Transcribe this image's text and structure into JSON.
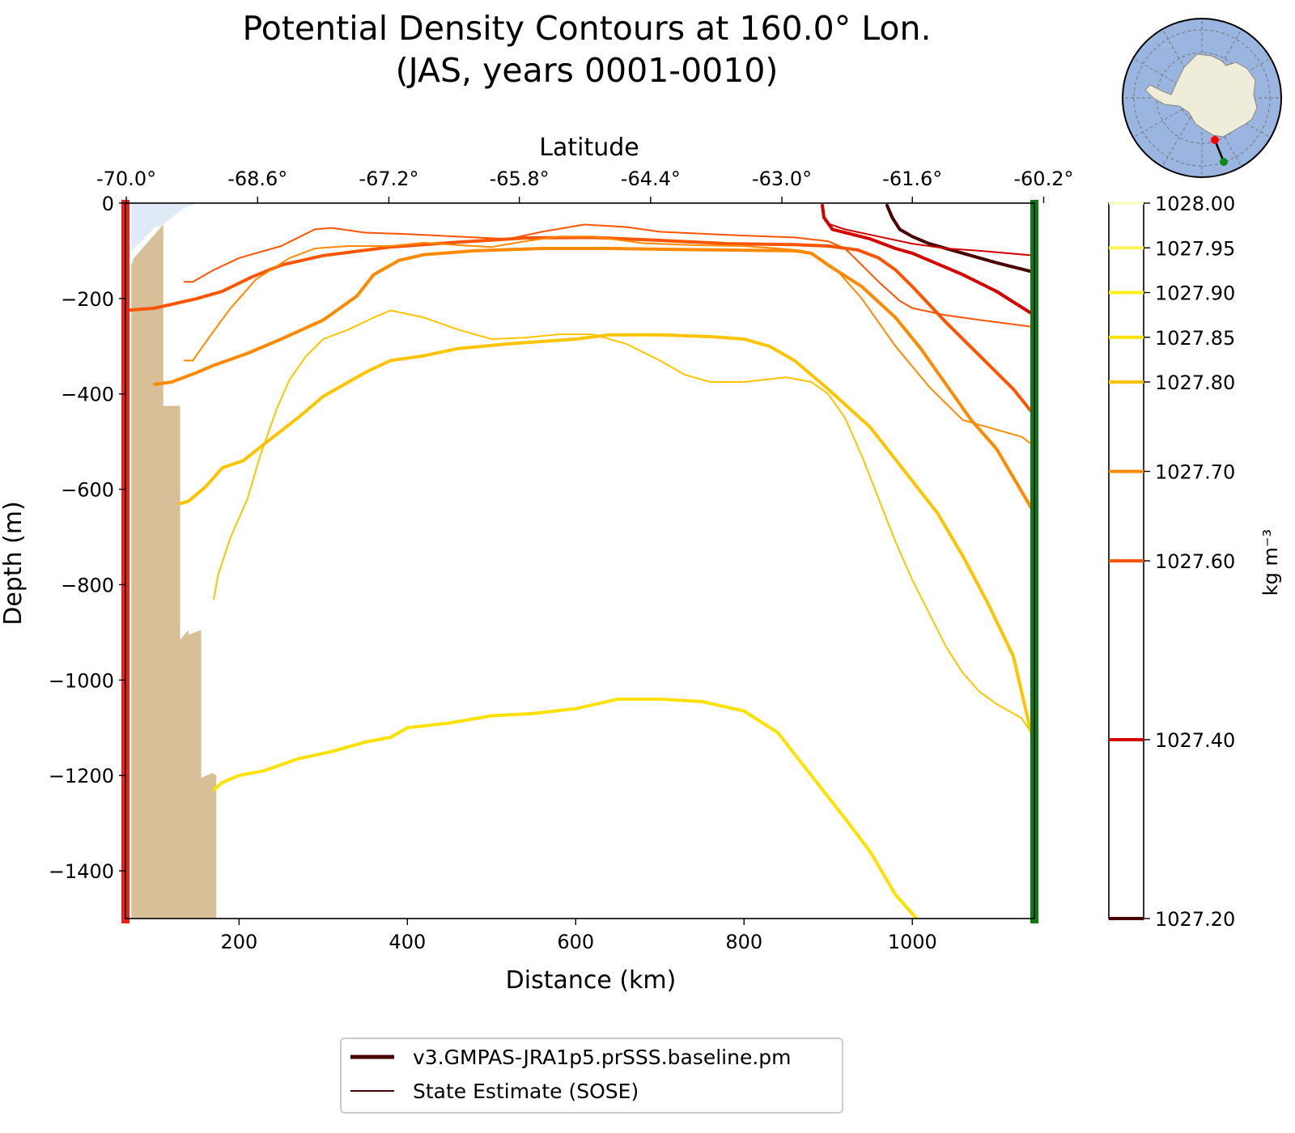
{
  "chart_data": {
    "type": "line",
    "title_line1": "Potential Density Contours at 160.0° Lon.",
    "title_line2": "(JAS, years 0001-0010)",
    "xlabel": "Distance (km)",
    "ylabel": "Depth (m)",
    "top_xlabel": "Latitude",
    "xlim": [
      65,
      1145
    ],
    "ylim": [
      -1500,
      0
    ],
    "x_ticks": [
      200,
      400,
      600,
      800,
      1000
    ],
    "x_tick_labels": [
      "200",
      "400",
      "600",
      "800",
      "1000"
    ],
    "y_ticks": [
      0,
      -200,
      -400,
      -600,
      -800,
      -1000,
      -1200,
      -1400
    ],
    "y_tick_labels": [
      "0",
      "−200",
      "−400",
      "−600",
      "−800",
      "−1000",
      "−1200",
      "−1400"
    ],
    "lat_ticks": [
      {
        "x": 66,
        "label": "-70.0°"
      },
      {
        "x": 222,
        "label": "-68.6°"
      },
      {
        "x": 378,
        "label": "-67.2°"
      },
      {
        "x": 533,
        "label": "-65.8°"
      },
      {
        "x": 689,
        "label": "-64.4°"
      },
      {
        "x": 845,
        "label": "-63.0°"
      },
      {
        "x": 1000,
        "label": "-61.6°"
      },
      {
        "x": 1156,
        "label": "-60.2°"
      }
    ],
    "section_start_color": "#e8231b",
    "section_end_color": "#0e7a12",
    "colorbar": {
      "label": "kg m⁻³",
      "range": [
        1027.2,
        1028.0
      ],
      "levels": [
        {
          "value": 1028.0,
          "label": "1028.00",
          "color": "#fffccc"
        },
        {
          "value": 1027.95,
          "label": "1027.95",
          "color": "#fff45a"
        },
        {
          "value": 1027.9,
          "label": "1027.90",
          "color": "#ffee1a"
        },
        {
          "value": 1027.85,
          "label": "1027.85",
          "color": "#ffe100"
        },
        {
          "value": 1027.8,
          "label": "1027.80",
          "color": "#ffc400"
        },
        {
          "value": 1027.7,
          "label": "1027.70",
          "color": "#ff8a00"
        },
        {
          "value": 1027.6,
          "label": "1027.60",
          "color": "#ff5500"
        },
        {
          "value": 1027.4,
          "label": "1027.40",
          "color": "#d40000"
        },
        {
          "value": 1027.2,
          "label": "1027.20",
          "color": "#4a0000"
        }
      ]
    },
    "legend": [
      {
        "label": "v3.GMPAS-JRA1p5.prSSS.baseline.pm",
        "color": "#4a0000",
        "style": "thick"
      },
      {
        "label": "State Estimate (SOSE)",
        "color": "#4a0000",
        "style": "thin"
      }
    ],
    "bathymetry": {
      "color": "#d7c097",
      "points": [
        [
          72,
          -1500
        ],
        [
          72,
          -130
        ],
        [
          75,
          -115
        ],
        [
          110,
          -45
        ],
        [
          110,
          -425
        ],
        [
          130,
          -425
        ],
        [
          130,
          -915
        ],
        [
          140,
          -895
        ],
        [
          140,
          -905
        ],
        [
          155,
          -895
        ],
        [
          155,
          -1205
        ],
        [
          168,
          -1195
        ],
        [
          173,
          -1200
        ],
        [
          173,
          -1500
        ]
      ]
    },
    "ice_shelf": {
      "color": "#dfeaf6",
      "points": [
        [
          72,
          0
        ],
        [
          150,
          0
        ],
        [
          135,
          -10
        ],
        [
          120,
          -30
        ],
        [
          108,
          -48
        ],
        [
          100,
          -50
        ],
        [
          84,
          -80
        ],
        [
          72,
          -100
        ]
      ]
    },
    "series": [
      {
        "name": "1027.20 model",
        "source": "model",
        "color": "#4a0000",
        "points": [
          [
            970,
            -5
          ],
          [
            976,
            -30
          ],
          [
            985,
            -55
          ],
          [
            1000,
            -70
          ],
          [
            1020,
            -85
          ],
          [
            1060,
            -105
          ],
          [
            1100,
            -125
          ],
          [
            1145,
            -145
          ]
        ]
      },
      {
        "name": "1027.40 model",
        "source": "model",
        "color": "#d40000",
        "points": [
          [
            893,
            -5
          ],
          [
            895,
            -30
          ],
          [
            905,
            -55
          ],
          [
            950,
            -75
          ],
          [
            980,
            -95
          ],
          [
            1000,
            -105
          ],
          [
            1020,
            -120
          ],
          [
            1060,
            -150
          ],
          [
            1100,
            -185
          ],
          [
            1145,
            -235
          ]
        ]
      },
      {
        "name": "1027.40 SOSE",
        "source": "sose",
        "color": "#d40000",
        "points": [
          [
            903,
            -45
          ],
          [
            920,
            -55
          ],
          [
            960,
            -70
          ],
          [
            1000,
            -85
          ],
          [
            1040,
            -95
          ],
          [
            1080,
            -100
          ],
          [
            1145,
            -110
          ]
        ]
      },
      {
        "name": "1027.60 model",
        "source": "model",
        "color": "#ff5500",
        "points": [
          [
            65,
            -225
          ],
          [
            100,
            -220
          ],
          [
            150,
            -200
          ],
          [
            180,
            -185
          ],
          [
            215,
            -155
          ],
          [
            250,
            -130
          ],
          [
            300,
            -110
          ],
          [
            380,
            -92
          ],
          [
            460,
            -82
          ],
          [
            540,
            -73
          ],
          [
            620,
            -72
          ],
          [
            700,
            -78
          ],
          [
            780,
            -85
          ],
          [
            860,
            -87
          ],
          [
            900,
            -90
          ],
          [
            935,
            -98
          ],
          [
            960,
            -115
          ],
          [
            980,
            -140
          ],
          [
            1000,
            -175
          ],
          [
            1040,
            -250
          ],
          [
            1080,
            -320
          ],
          [
            1120,
            -390
          ],
          [
            1145,
            -445
          ]
        ]
      },
      {
        "name": "1027.60 SOSE",
        "source": "sose",
        "color": "#ff5500",
        "points": [
          [
            135,
            -165
          ],
          [
            145,
            -165
          ],
          [
            170,
            -140
          ],
          [
            200,
            -115
          ],
          [
            250,
            -90
          ],
          [
            290,
            -55
          ],
          [
            310,
            -52
          ],
          [
            350,
            -62
          ],
          [
            400,
            -65
          ],
          [
            480,
            -72
          ],
          [
            520,
            -75
          ],
          [
            560,
            -60
          ],
          [
            610,
            -45
          ],
          [
            660,
            -50
          ],
          [
            700,
            -60
          ],
          [
            760,
            -65
          ],
          [
            800,
            -68
          ],
          [
            860,
            -72
          ],
          [
            900,
            -80
          ],
          [
            920,
            -95
          ],
          [
            940,
            -130
          ],
          [
            960,
            -165
          ],
          [
            985,
            -205
          ],
          [
            1000,
            -220
          ],
          [
            1040,
            -235
          ],
          [
            1080,
            -245
          ],
          [
            1145,
            -260
          ]
        ]
      },
      {
        "name": "1027.70 model",
        "source": "model",
        "color": "#ff8a00",
        "points": [
          [
            100,
            -380
          ],
          [
            120,
            -375
          ],
          [
            150,
            -355
          ],
          [
            170,
            -340
          ],
          [
            210,
            -315
          ],
          [
            250,
            -285
          ],
          [
            300,
            -245
          ],
          [
            340,
            -195
          ],
          [
            360,
            -150
          ],
          [
            390,
            -120
          ],
          [
            420,
            -108
          ],
          [
            480,
            -100
          ],
          [
            560,
            -95
          ],
          [
            640,
            -95
          ],
          [
            720,
            -97
          ],
          [
            800,
            -99
          ],
          [
            860,
            -100
          ],
          [
            880,
            -105
          ],
          [
            900,
            -130
          ],
          [
            940,
            -175
          ],
          [
            980,
            -240
          ],
          [
            1010,
            -305
          ],
          [
            1040,
            -380
          ],
          [
            1070,
            -455
          ],
          [
            1100,
            -515
          ],
          [
            1145,
            -650
          ]
        ]
      },
      {
        "name": "1027.70 SOSE",
        "source": "sose",
        "color": "#ff8a00",
        "points": [
          [
            135,
            -330
          ],
          [
            145,
            -330
          ],
          [
            165,
            -280
          ],
          [
            190,
            -220
          ],
          [
            220,
            -160
          ],
          [
            260,
            -115
          ],
          [
            290,
            -95
          ],
          [
            330,
            -90
          ],
          [
            380,
            -90
          ],
          [
            420,
            -83
          ],
          [
            460,
            -88
          ],
          [
            500,
            -92
          ],
          [
            540,
            -80
          ],
          [
            580,
            -70
          ],
          [
            620,
            -70
          ],
          [
            680,
            -84
          ],
          [
            740,
            -88
          ],
          [
            800,
            -90
          ],
          [
            840,
            -95
          ],
          [
            870,
            -100
          ],
          [
            890,
            -115
          ],
          [
            910,
            -140
          ],
          [
            940,
            -200
          ],
          [
            980,
            -300
          ],
          [
            1020,
            -385
          ],
          [
            1060,
            -455
          ],
          [
            1100,
            -475
          ],
          [
            1130,
            -490
          ],
          [
            1145,
            -510
          ]
        ]
      },
      {
        "name": "1027.80 model",
        "source": "model",
        "color": "#ffc400",
        "points": [
          [
            130,
            -630
          ],
          [
            140,
            -625
          ],
          [
            160,
            -595
          ],
          [
            180,
            -555
          ],
          [
            205,
            -540
          ],
          [
            230,
            -505
          ],
          [
            270,
            -450
          ],
          [
            300,
            -405
          ],
          [
            350,
            -355
          ],
          [
            380,
            -330
          ],
          [
            420,
            -320
          ],
          [
            460,
            -305
          ],
          [
            520,
            -295
          ],
          [
            600,
            -285
          ],
          [
            640,
            -276
          ],
          [
            700,
            -276
          ],
          [
            760,
            -280
          ],
          [
            800,
            -285
          ],
          [
            830,
            -300
          ],
          [
            860,
            -330
          ],
          [
            900,
            -390
          ],
          [
            950,
            -470
          ],
          [
            990,
            -560
          ],
          [
            1030,
            -650
          ],
          [
            1060,
            -740
          ],
          [
            1090,
            -840
          ],
          [
            1120,
            -950
          ],
          [
            1145,
            -1140
          ]
        ]
      },
      {
        "name": "1027.80 SOSE",
        "source": "sose",
        "color": "#ffc400",
        "points": [
          [
            170,
            -830
          ],
          [
            175,
            -780
          ],
          [
            190,
            -700
          ],
          [
            210,
            -620
          ],
          [
            225,
            -530
          ],
          [
            245,
            -430
          ],
          [
            260,
            -370
          ],
          [
            280,
            -320
          ],
          [
            300,
            -285
          ],
          [
            330,
            -265
          ],
          [
            360,
            -240
          ],
          [
            380,
            -225
          ],
          [
            420,
            -240
          ],
          [
            460,
            -265
          ],
          [
            500,
            -285
          ],
          [
            540,
            -282
          ],
          [
            580,
            -275
          ],
          [
            620,
            -275
          ],
          [
            660,
            -295
          ],
          [
            700,
            -330
          ],
          [
            730,
            -360
          ],
          [
            760,
            -375
          ],
          [
            800,
            -375
          ],
          [
            850,
            -365
          ],
          [
            880,
            -375
          ],
          [
            900,
            -400
          ],
          [
            920,
            -450
          ],
          [
            940,
            -530
          ],
          [
            960,
            -620
          ],
          [
            980,
            -710
          ],
          [
            1000,
            -790
          ],
          [
            1020,
            -860
          ],
          [
            1040,
            -930
          ],
          [
            1060,
            -985
          ],
          [
            1080,
            -1025
          ],
          [
            1100,
            -1050
          ],
          [
            1130,
            -1080
          ],
          [
            1145,
            -1120
          ]
        ]
      },
      {
        "name": "1027.85 model",
        "source": "model",
        "color": "#ffe100",
        "points": [
          [
            170,
            -1230
          ],
          [
            180,
            -1215
          ],
          [
            200,
            -1200
          ],
          [
            230,
            -1190
          ],
          [
            270,
            -1165
          ],
          [
            310,
            -1150
          ],
          [
            350,
            -1130
          ],
          [
            380,
            -1120
          ],
          [
            400,
            -1100
          ],
          [
            450,
            -1090
          ],
          [
            500,
            -1075
          ],
          [
            550,
            -1070
          ],
          [
            600,
            -1060
          ],
          [
            650,
            -1040
          ],
          [
            700,
            -1040
          ],
          [
            750,
            -1045
          ],
          [
            800,
            -1065
          ],
          [
            840,
            -1110
          ],
          [
            880,
            -1200
          ],
          [
            920,
            -1290
          ],
          [
            950,
            -1360
          ],
          [
            980,
            -1450
          ],
          [
            1005,
            -1500
          ]
        ]
      }
    ]
  },
  "map": {
    "ocean_color": "#9ab6e0",
    "land_color": "#efedd9"
  }
}
